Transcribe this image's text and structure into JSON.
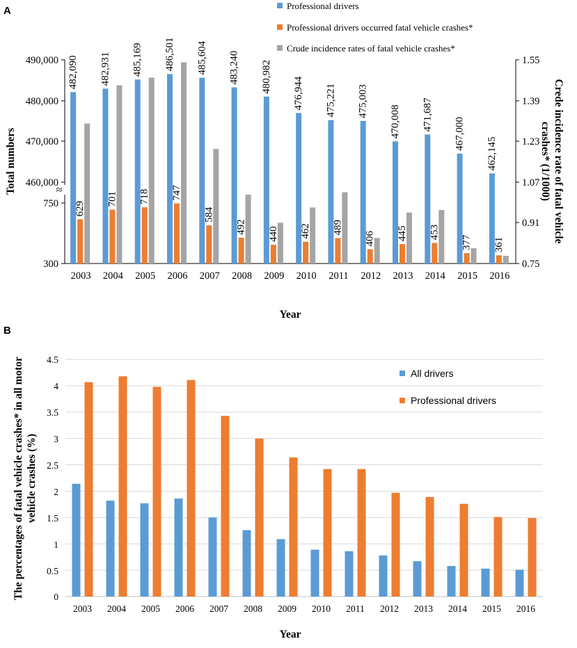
{
  "chart_data": [
    {
      "panel": "A",
      "type": "bar",
      "categories": [
        "2003",
        "2004",
        "2005",
        "2006",
        "2007",
        "2008",
        "2009",
        "2010",
        "2011",
        "2012",
        "2013",
        "2014",
        "2015",
        "2016"
      ],
      "series": [
        {
          "name": "Professional drivers",
          "axis": "left-upper",
          "color": "#5B9BD5",
          "values": [
            482090,
            482931,
            485169,
            486501,
            485604,
            483240,
            480982,
            476944,
            475221,
            475003,
            470008,
            471687,
            467000,
            462145
          ],
          "labels": [
            "482,090",
            "482,931",
            "485,169",
            "486,501",
            "485,604",
            "483,240",
            "480,982",
            "476,944",
            "475,221",
            "475,003",
            "470,008",
            "471,687",
            "467,000",
            "462,145"
          ]
        },
        {
          "name": "Professional drivers occurred fatal  vehicle crashes*",
          "axis": "left-lower",
          "color": "#ED7D31",
          "values": [
            629,
            701,
            718,
            747,
            584,
            492,
            440,
            462,
            489,
            406,
            445,
            453,
            377,
            361
          ],
          "labels": [
            "629",
            "701",
            "718",
            "747",
            "584",
            "492",
            "440",
            "462",
            "489",
            "406",
            "445",
            "453",
            "377",
            "361"
          ]
        },
        {
          "name": "Crude incidence rates of fatal  vehicle crashes*",
          "axis": "right",
          "color": "#A5A5A5",
          "values": [
            1.3,
            1.45,
            1.48,
            1.54,
            1.2,
            1.02,
            0.91,
            0.97,
            1.03,
            0.85,
            0.95,
            0.96,
            0.81,
            0.78
          ]
        }
      ],
      "ylabel": "Total numbers",
      "xlabel": "Year",
      "y2label_line1": "Crede incidence rate of fatal vehicle",
      "y2label_line2": "crashes* (1/1000)",
      "yticks_upper": [
        "490,000",
        "480,000",
        "470,000",
        "460,000"
      ],
      "yticks_lower": [
        "750",
        "300"
      ],
      "y2ticks": [
        "1.55",
        "1.39",
        "1.23",
        "1.07",
        "0.91",
        "0.75"
      ],
      "ylim_upper": [
        456500,
        490000
      ],
      "ylim_lower": [
        300,
        900
      ],
      "y2lim": [
        0.75,
        1.55
      ],
      "legend_position": "top"
    },
    {
      "panel": "B",
      "type": "bar",
      "categories": [
        "2003",
        "2004",
        "2005",
        "2006",
        "2007",
        "2008",
        "2009",
        "2010",
        "2011",
        "2012",
        "2013",
        "2014",
        "2015",
        "2016"
      ],
      "series": [
        {
          "name": "All drivers",
          "color": "#5B9BD5",
          "values": [
            2.14,
            1.82,
            1.77,
            1.86,
            1.5,
            1.26,
            1.09,
            0.89,
            0.86,
            0.78,
            0.67,
            0.58,
            0.53,
            0.51
          ]
        },
        {
          "name": "Professional drivers",
          "color": "#ED7D31",
          "values": [
            4.07,
            4.18,
            3.98,
            4.11,
            3.43,
            3.0,
            2.64,
            2.42,
            2.42,
            1.97,
            1.89,
            1.76,
            1.51,
            1.49
          ]
        }
      ],
      "ylabel_line1": "The percentages of fatal vehicle crashes* in all motor",
      "ylabel_line2": "vehicle crashes (%)",
      "xlabel": "Year",
      "yticks": [
        "4.5",
        "4",
        "3.5",
        "3",
        "2.5",
        "2",
        "1.5",
        "1",
        "0.5",
        "0"
      ],
      "ylim": [
        0,
        4.5
      ],
      "legend_position": "top-right"
    }
  ],
  "panels": {
    "a": "A",
    "b": "B"
  },
  "break_mark": "≈"
}
